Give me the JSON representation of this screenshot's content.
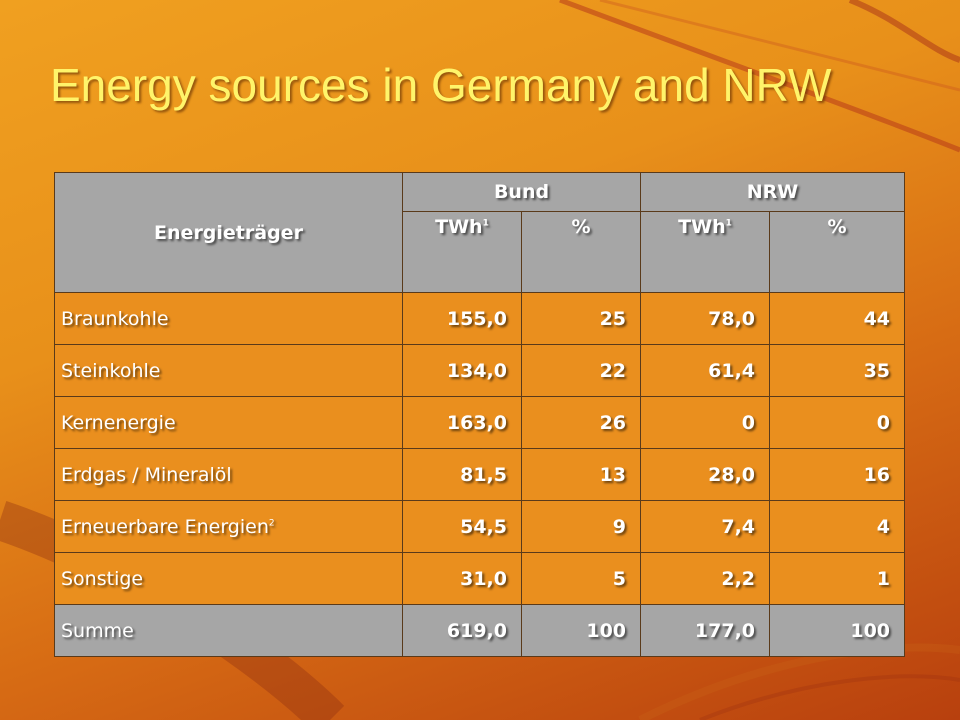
{
  "slide": {
    "title": "Energy sources in Germany and NRW"
  },
  "table": {
    "header": {
      "col_main": "Energieträger",
      "group_bund": "Bund",
      "group_nrw": "NRW",
      "twh_label": "TWh",
      "twh_note": "1",
      "percent_label": "%"
    },
    "rows": [
      {
        "label": "Braunkohle",
        "note": "",
        "bund_twh": "155,0",
        "bund_pct": "25",
        "nrw_twh": "78,0",
        "nrw_pct": "44"
      },
      {
        "label": "Steinkohle",
        "note": "",
        "bund_twh": "134,0",
        "bund_pct": "22",
        "nrw_twh": "61,4",
        "nrw_pct": "35"
      },
      {
        "label": "Kernenergie",
        "note": "",
        "bund_twh": "163,0",
        "bund_pct": "26",
        "nrw_twh": "0",
        "nrw_pct": "0"
      },
      {
        "label": "Erdgas / Mineralöl",
        "note": "",
        "bund_twh": "81,5",
        "bund_pct": "13",
        "nrw_twh": "28,0",
        "nrw_pct": "16"
      },
      {
        "label": "Erneuerbare Energien",
        "note": "2",
        "bund_twh": "54,5",
        "bund_pct": "9",
        "nrw_twh": "7,4",
        "nrw_pct": "4"
      },
      {
        "label": "Sonstige",
        "note": "",
        "bund_twh": "31,0",
        "bund_pct": "5",
        "nrw_twh": "2,2",
        "nrw_pct": "1"
      }
    ],
    "total": {
      "label": "Summe",
      "bund_twh": "619,0",
      "bund_pct": "100",
      "nrw_twh": "177,0",
      "nrw_pct": "100"
    }
  },
  "colors": {
    "title": "#fff46a",
    "header_bg": "#a6a6a6",
    "cell_bg": "#ea8f1e",
    "background": "#e8901a"
  }
}
